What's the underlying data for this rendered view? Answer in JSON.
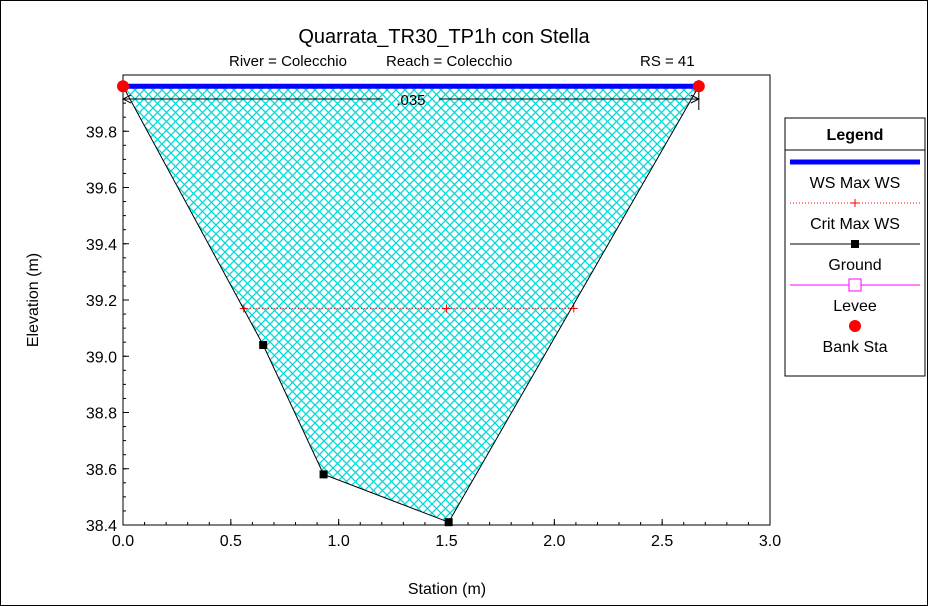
{
  "chart_data": {
    "type": "line",
    "title": "Quarrata_TR30_TP1h con Stella",
    "subtitle": {
      "river": "River = Colecchio",
      "reach": "Reach = Colecchio",
      "rs": "RS = 41"
    },
    "xlabel": "Station (m)",
    "ylabel": "Elevation (m)",
    "xlim": [
      0.0,
      3.0
    ],
    "ylim": [
      38.4,
      40.0
    ],
    "x_ticks": [
      "0.0",
      "0.5",
      "1.0",
      "1.5",
      "2.0",
      "2.5",
      "3.0"
    ],
    "y_ticks": [
      "38.4",
      "38.6",
      "38.8",
      "39.0",
      "39.2",
      "39.4",
      "39.6",
      "39.8"
    ],
    "manning_n": {
      "label": ".035",
      "x_start": 0.0,
      "x_end": 2.67
    },
    "ground": [
      {
        "x": 0.0,
        "y": 39.96
      },
      {
        "x": 0.65,
        "y": 39.04
      },
      {
        "x": 0.93,
        "y": 38.58
      },
      {
        "x": 1.51,
        "y": 38.41
      },
      {
        "x": 2.67,
        "y": 39.96
      }
    ],
    "ws_max": {
      "name": "WS Max WS",
      "y": 39.96,
      "x": [
        0.0,
        2.67
      ],
      "color": "#0000ff"
    },
    "crit_max": {
      "name": "Crit Max WS",
      "y": 39.17,
      "x": [
        0.56,
        1.5,
        2.09
      ],
      "color": "#ff0000"
    },
    "bank_sta": [
      {
        "x": 0.0,
        "y": 39.96
      },
      {
        "x": 2.67,
        "y": 39.96
      }
    ],
    "fill_color": "#00e0e0",
    "legend": {
      "title": "Legend",
      "placement": "right",
      "entries": [
        {
          "label": "WS Max WS",
          "style": "ws",
          "color": "#0000ff"
        },
        {
          "label": "Crit Max WS",
          "style": "crit",
          "color": "#ff0000"
        },
        {
          "label": "Ground",
          "style": "ground",
          "color": "#000000"
        },
        {
          "label": "Levee",
          "style": "levee",
          "color": "#ff00ff"
        },
        {
          "label": "Bank Sta",
          "style": "bank",
          "color": "#ff0000"
        }
      ]
    }
  }
}
